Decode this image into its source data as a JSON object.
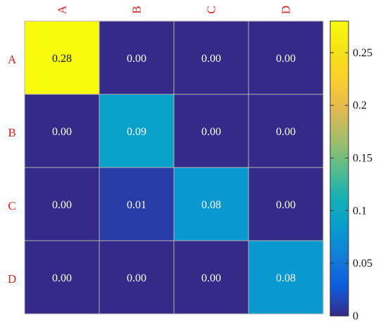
{
  "chart_data": {
    "type": "heatmap",
    "title": "",
    "rows": [
      "A",
      "B",
      "C",
      "D"
    ],
    "columns": [
      "A",
      "B",
      "C",
      "D"
    ],
    "values": [
      [
        0.28,
        0.0,
        0.0,
        0.0
      ],
      [
        0.0,
        0.09,
        0.0,
        0.0
      ],
      [
        0.0,
        0.01,
        0.08,
        0.0
      ],
      [
        0.0,
        0.0,
        0.0,
        0.08
      ]
    ],
    "cell_labels": [
      [
        "0.28",
        "0.00",
        "0.00",
        "0.00"
      ],
      [
        "0.00",
        "0.09",
        "0.00",
        "0.00"
      ],
      [
        "0.00",
        "0.01",
        "0.08",
        "0.00"
      ],
      [
        "0.00",
        "0.00",
        "0.00",
        "0.08"
      ]
    ],
    "colorbar": {
      "range": [
        0,
        0.28
      ],
      "ticks": [
        0,
        0.05,
        0.1,
        0.15,
        0.2,
        0.25
      ],
      "tick_labels": [
        "0",
        "0.05",
        "0.1",
        "0.15",
        "0.2",
        "0.25"
      ]
    },
    "colormap": "parula",
    "label_color": "#e0201a",
    "grid_color": "#b4b4b4"
  }
}
